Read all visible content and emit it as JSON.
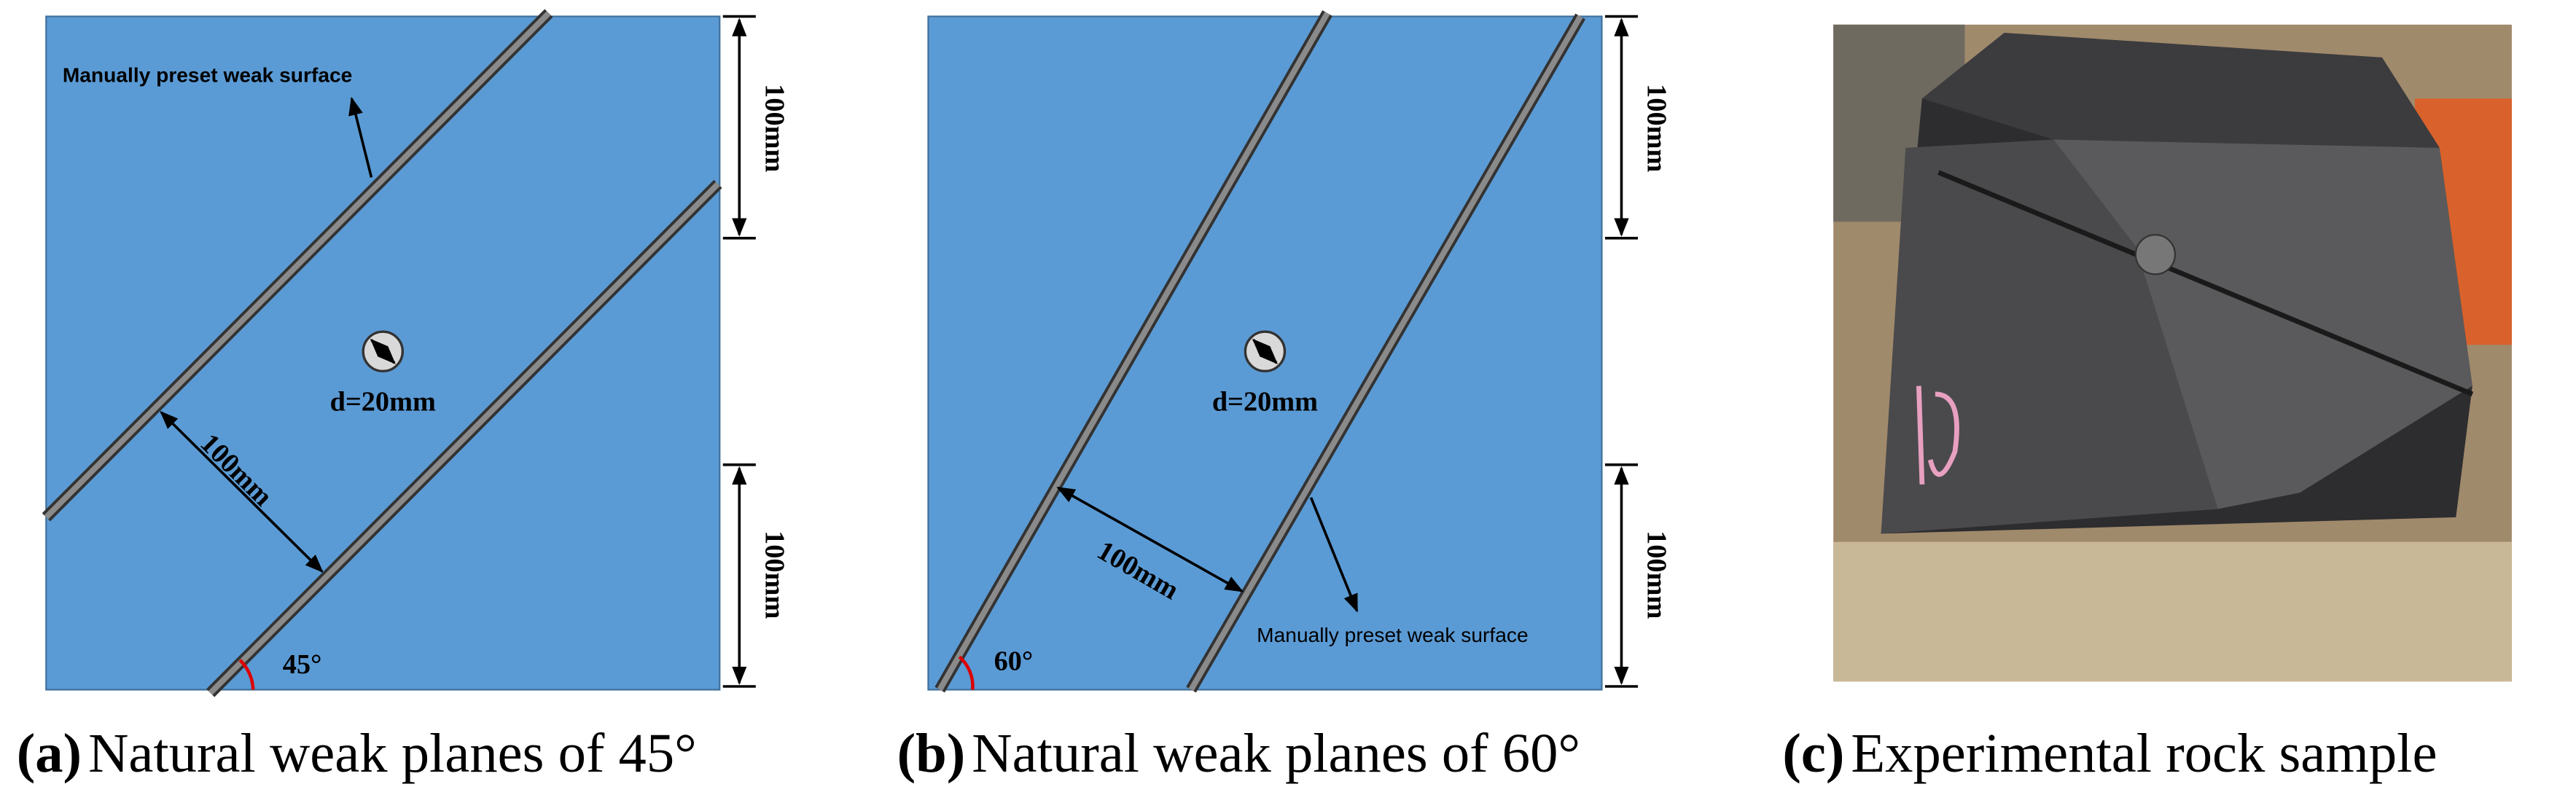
{
  "panels": [
    {
      "label": "(a)",
      "caption": "Natural weak planes of 45°",
      "weak_surface": "Manually preset weak surface",
      "top_dim": "100mm",
      "bottom_dim": "100mm",
      "diameter": "d=20mm",
      "spacing": "100mm",
      "angle": "45°"
    },
    {
      "label": "(b)",
      "caption": "Natural weak planes of 60°",
      "weak_surface": "Manually preset weak surface",
      "top_dim": "100mm",
      "bottom_dim": "100mm",
      "diameter": "d=20mm",
      "spacing": "100mm",
      "angle": "60°"
    },
    {
      "label": "(c)",
      "caption": "Experimental rock sample"
    }
  ]
}
